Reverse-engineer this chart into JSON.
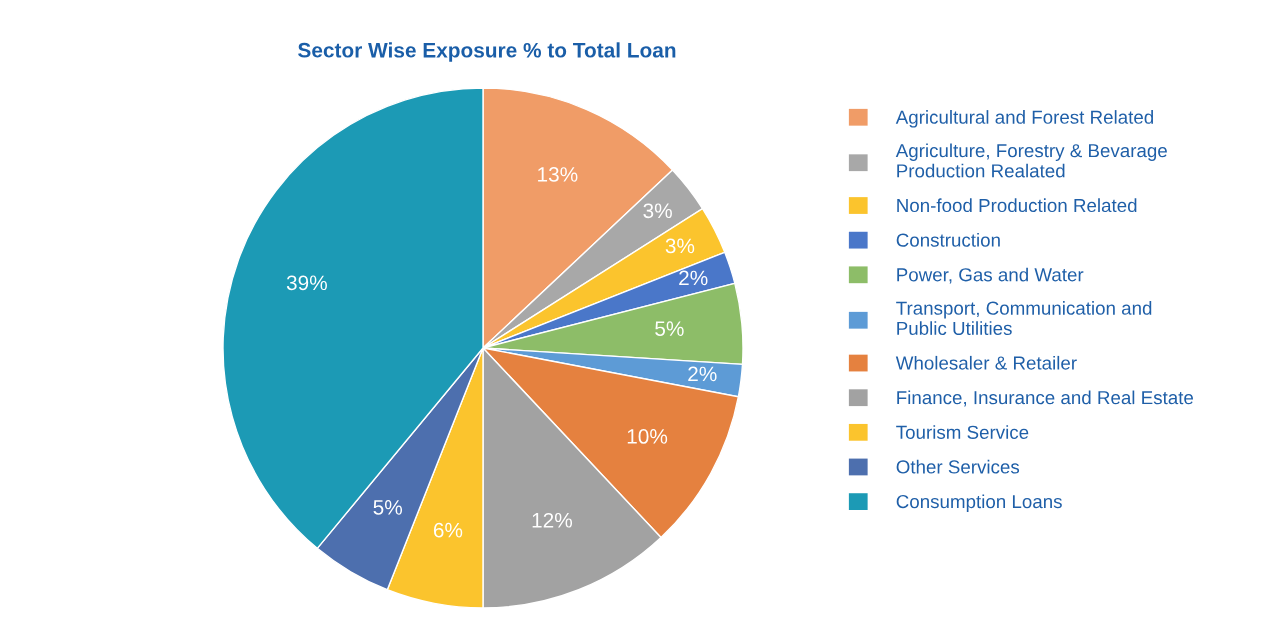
{
  "chart_data": {
    "type": "pie",
    "title": "Sector Wise Exposure % to Total Loan",
    "categories": [
      "Agricultural and Forest Related",
      "Agriculture, Forestry & Bevarage\nProduction Realated",
      "Non-food Production Related",
      "Construction",
      "Power, Gas and Water",
      "Transport, Communication and\nPublic Utilities",
      "Wholesaler & Retailer",
      "Finance, Insurance and Real Estate",
      "Tourism Service",
      "Other Services",
      "Consumption Loans"
    ],
    "values": [
      13,
      3,
      3,
      2,
      5,
      2,
      10,
      12,
      6,
      5,
      39
    ],
    "colors": [
      "#f09c67",
      "#a8a8a8",
      "#fbc42d",
      "#4a77c9",
      "#8dbd68",
      "#5d9bd6",
      "#e5813f",
      "#a2a2a2",
      "#fbc42d",
      "#4d6fae",
      "#1c9ab5"
    ],
    "value_labels": [
      "13%",
      "3%",
      "3%",
      "2%",
      "5%",
      "2%",
      "10%",
      "12%",
      "6%",
      "5%",
      "39%"
    ],
    "legend": "right"
  }
}
